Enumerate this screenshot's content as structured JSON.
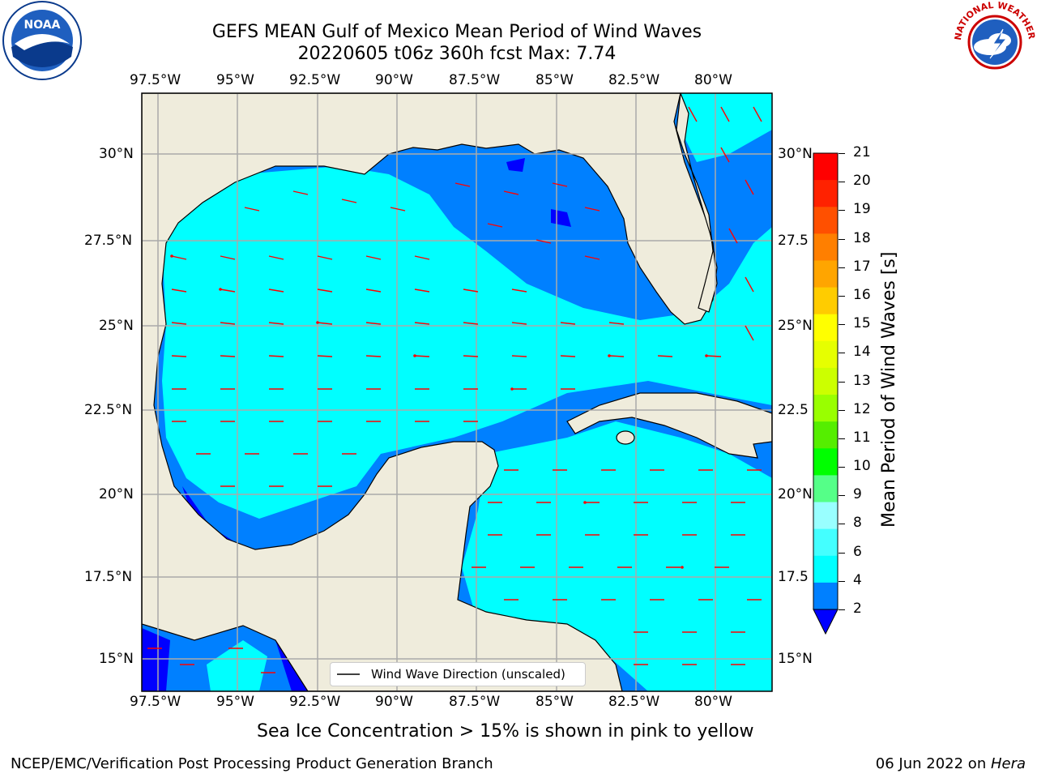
{
  "header": {
    "title_line1": "GEFS MEAN Gulf of Mexico Mean Period of Wind Waves",
    "title_line2": "20220605 t06z 360h fcst   Max: 7.74"
  },
  "logos": {
    "noaa_text": "NOAA",
    "nws_text": "NATIONAL WEATHER SERVICE"
  },
  "map": {
    "lon_labels": [
      "97.5°W",
      "95°W",
      "92.5°W",
      "90°W",
      "87.5°W",
      "85°W",
      "82.5°W",
      "80°W"
    ],
    "lat_labels_left": [
      "30°N",
      "27.5°N",
      "25°N",
      "22.5°N",
      "20°N",
      "17.5°N",
      "15°N"
    ],
    "lat_labels_right": [
      "30°N",
      "27.5",
      "25°N",
      "22.5",
      "20°N",
      "17.5",
      "15°N"
    ],
    "legend_label": "Wind Wave Direction (unscaled)",
    "colors": {
      "land": "#efecdc",
      "ocean_light": "#00ffff",
      "ocean_mid": "#0080ff",
      "ocean_deep": "#0000ff",
      "arrow": "#ff0000",
      "grid": "#aaaaaa"
    }
  },
  "colorbar": {
    "title": "Mean Period of Wind Waves [s]",
    "labels": [
      "21",
      "20",
      "19",
      "18",
      "17",
      "16",
      "15",
      "14",
      "13",
      "12",
      "11",
      "10",
      "9",
      "8",
      "6",
      "4",
      "2"
    ],
    "colors": [
      "#ff0000",
      "#ff2200",
      "#ff5000",
      "#ff7f00",
      "#ffa500",
      "#ffcc00",
      "#ffff00",
      "#e6ff00",
      "#ccff00",
      "#99ff00",
      "#55ee00",
      "#00ff00",
      "#55ff88",
      "#99ffff",
      "#44ffff",
      "#00ffff",
      "#0080ff"
    ],
    "extend_color": "#0000ff"
  },
  "caption": "Sea Ice Concentration > 15% is shown in pink to yellow",
  "footer": {
    "left": "NCEP/EMC/Verification Post Processing Product Generation Branch",
    "right_date": "06 Jun 2022 on ",
    "right_host": "Hera"
  }
}
